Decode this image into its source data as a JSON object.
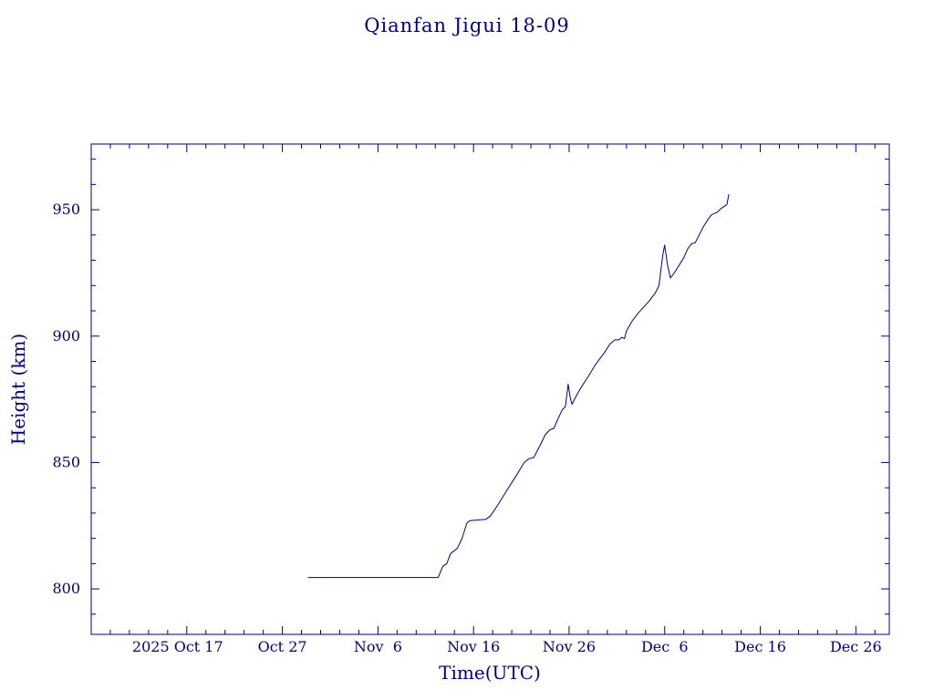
{
  "colors": {
    "ink": "#000080",
    "background": "#ffffff"
  },
  "chart_data": {
    "type": "line",
    "title": "Qianfan Jigui 18-09",
    "xlabel": "Time(UTC)",
    "ylabel": "Height (km)",
    "x_unit": "days since 2025-10-07",
    "xlim": [
      0,
      83.5
    ],
    "ylim": [
      782,
      976
    ],
    "grid": false,
    "legend": "none",
    "x_ticks": [
      {
        "day": 10,
        "label": "2025 Oct 17",
        "dx": -10
      },
      {
        "day": 20,
        "label": "Oct 27"
      },
      {
        "day": 30,
        "label": "Nov  6"
      },
      {
        "day": 40,
        "label": "Nov 16"
      },
      {
        "day": 50,
        "label": "Nov 26"
      },
      {
        "day": 60,
        "label": "Dec  6"
      },
      {
        "day": 70,
        "label": "Dec 16"
      },
      {
        "day": 80,
        "label": "Dec 26"
      }
    ],
    "y_ticks": [
      800,
      850,
      900,
      950
    ],
    "x_minor_step": 2,
    "y_minor_step": 10,
    "series": [
      {
        "name": "height_km",
        "x": [
          22.7,
          36.3,
          36.8,
          37.2,
          37.6,
          38.3,
          38.8,
          39.3,
          39.6,
          41.3,
          41.8,
          42.5,
          43.5,
          44.5,
          45.3,
          45.8,
          46.3,
          47.0,
          47.5,
          48.0,
          48.4,
          48.8,
          49.3,
          49.6,
          49.9,
          50.1,
          50.3,
          50.7,
          51.3,
          52.0,
          52.8,
          53.6,
          54.3,
          54.8,
          55.2,
          55.5,
          55.8,
          56.0,
          56.6,
          57.2,
          57.8,
          58.4,
          59.0,
          59.4,
          59.8,
          60.0,
          60.3,
          60.6,
          61.0,
          61.5,
          62.0,
          62.4,
          62.8,
          63.2,
          63.6,
          64.0,
          64.5,
          64.9,
          65.5,
          65.9,
          66.3,
          66.5,
          66.7
        ],
        "y": [
          804.5,
          804.5,
          809,
          810,
          814,
          816,
          820,
          826,
          827,
          827.5,
          829,
          833,
          839,
          845,
          850,
          851.5,
          852,
          857,
          861,
          863,
          863.5,
          867,
          871,
          872,
          881,
          876,
          873,
          876,
          880,
          884,
          889,
          893,
          897,
          898.5,
          898.5,
          899.5,
          899,
          902,
          906,
          909,
          911.5,
          914,
          917,
          920,
          932,
          936,
          928,
          923,
          925,
          928,
          931,
          934.5,
          936.5,
          937,
          940,
          943,
          946,
          948,
          949,
          950.5,
          951.5,
          952,
          956
        ]
      }
    ]
  }
}
